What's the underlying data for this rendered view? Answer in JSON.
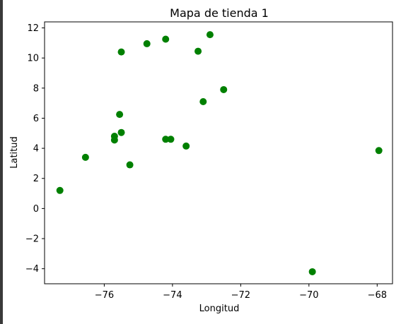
{
  "chart_data": {
    "type": "scatter",
    "title": "Mapa de tienda 1",
    "xlabel": "Longitud",
    "ylabel": "Latitud",
    "xlim": [
      -77.75,
      -67.55
    ],
    "ylim": [
      -5.0,
      12.4
    ],
    "xticks": [
      -76,
      -74,
      -72,
      -70,
      -68
    ],
    "yticks": [
      -4,
      -2,
      0,
      2,
      4,
      6,
      8,
      10,
      12
    ],
    "xtick_labels": [
      "−76",
      "−74",
      "−72",
      "−70",
      "−68"
    ],
    "ytick_labels": [
      "−4",
      "−2",
      "0",
      "2",
      "4",
      "6",
      "8",
      "10",
      "12"
    ],
    "grid": false,
    "marker_color": "#008000",
    "series": [
      {
        "points": [
          {
            "x": -77.3,
            "y": 1.2
          },
          {
            "x": -76.55,
            "y": 3.4
          },
          {
            "x": -75.7,
            "y": 4.55
          },
          {
            "x": -75.7,
            "y": 4.8
          },
          {
            "x": -75.55,
            "y": 6.25
          },
          {
            "x": -75.5,
            "y": 5.05
          },
          {
            "x": -75.5,
            "y": 10.4
          },
          {
            "x": -75.25,
            "y": 2.9
          },
          {
            "x": -74.75,
            "y": 10.95
          },
          {
            "x": -74.2,
            "y": 4.6
          },
          {
            "x": -74.2,
            "y": 11.25
          },
          {
            "x": -74.05,
            "y": 4.6
          },
          {
            "x": -73.6,
            "y": 4.15
          },
          {
            "x": -73.25,
            "y": 10.45
          },
          {
            "x": -73.1,
            "y": 7.1
          },
          {
            "x": -72.9,
            "y": 11.55
          },
          {
            "x": -72.5,
            "y": 7.9
          },
          {
            "x": -69.9,
            "y": -4.2
          },
          {
            "x": -67.95,
            "y": 3.85
          }
        ]
      }
    ]
  }
}
